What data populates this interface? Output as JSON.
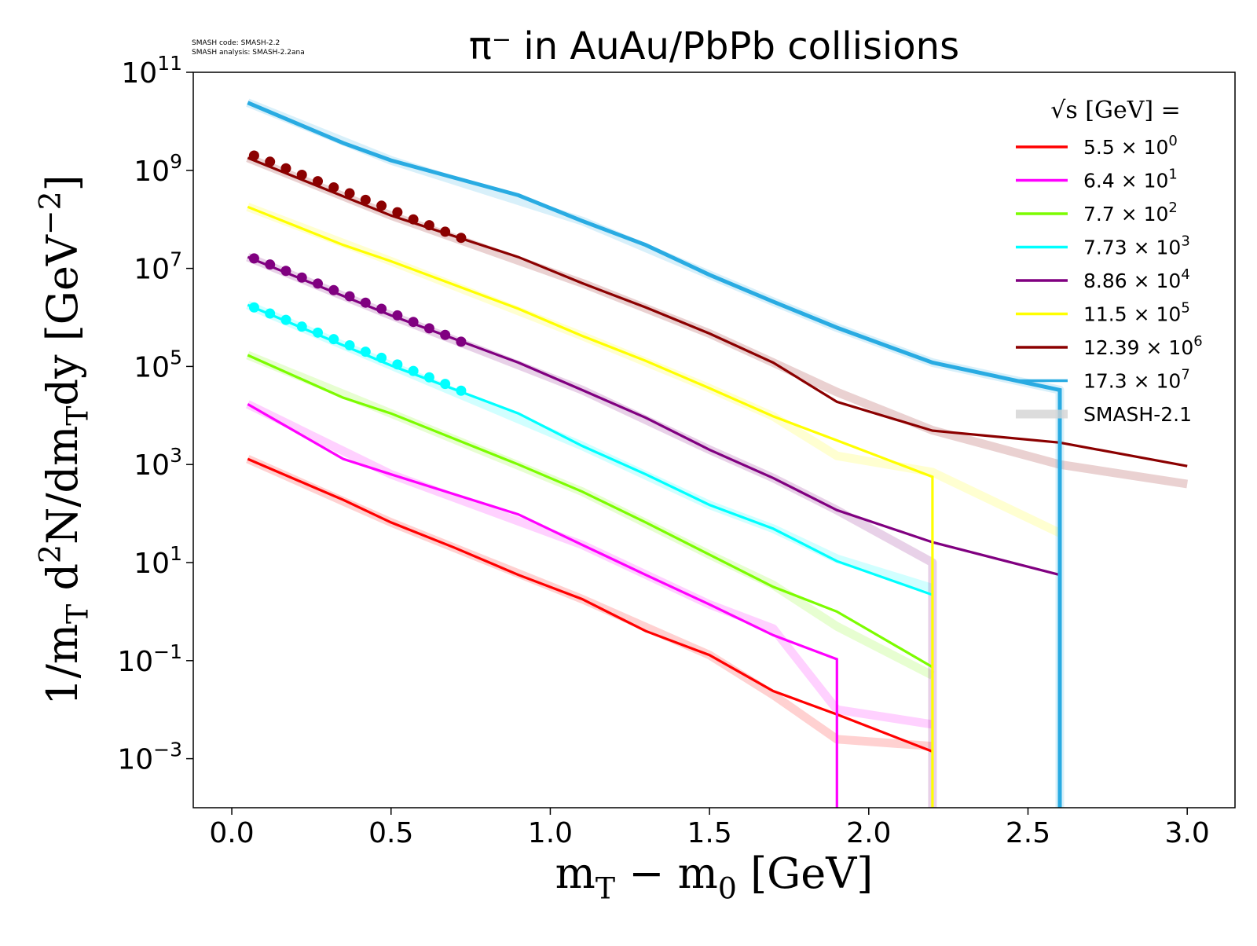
{
  "chart_data": {
    "type": "line",
    "title": "π⁻ in AuAu/PbPb collisions",
    "watermark": [
      "SMASH code:      SMASH-2.2",
      "SMASH analysis: SMASH-2.2ana"
    ],
    "xlabel": [
      {
        "text": "m"
      },
      {
        "sub": "T"
      },
      {
        "text": " − m"
      },
      {
        "sub": "0"
      },
      {
        "text": " [GeV]"
      }
    ],
    "ylabel": [
      {
        "text": "1/m"
      },
      {
        "sub": "T"
      },
      {
        "text": " d"
      },
      {
        "sup": "2"
      },
      {
        "text": "N/dm"
      },
      {
        "sub": "T"
      },
      {
        "text": "dy [GeV"
      },
      {
        "sup": "−2"
      },
      {
        "text": "]"
      }
    ],
    "xlim": [
      -0.121,
      3.15
    ],
    "ylim": [
      0.0001,
      100000000000
    ],
    "ylog": true,
    "xticks": [
      {
        "value": 0,
        "label": "0.0"
      },
      {
        "value": 0.5,
        "label": "0.5"
      },
      {
        "value": 1,
        "label": "1.0"
      },
      {
        "value": 1.5,
        "label": "1.5"
      },
      {
        "value": 2,
        "label": "2.0"
      },
      {
        "value": 2.5,
        "label": "2.5"
      },
      {
        "value": 3,
        "label": "3.0"
      }
    ],
    "yticks": [
      {
        "value": 0.001,
        "label": "10",
        "exponent": "−3"
      },
      {
        "value": 0.1,
        "label": "10",
        "exponent": "−1"
      },
      {
        "value": 10,
        "label": "10",
        "exponent": "1"
      },
      {
        "value": 1000,
        "label": "10",
        "exponent": "3"
      },
      {
        "value": 100000,
        "label": "10",
        "exponent": "5"
      },
      {
        "value": 10000000,
        "label": "10",
        "exponent": "7"
      },
      {
        "value": 1000000000,
        "label": "10",
        "exponent": "9"
      },
      {
        "value": 100000000000,
        "label": "10",
        "exponent": "11"
      }
    ],
    "legend_title": "√s  [GeV] =",
    "legend": "upper right",
    "series": [
      {
        "name": "5.5 × 10",
        "name_sup": "0",
        "color": "#ff0000",
        "x": [
          0.05,
          0.25,
          0.35,
          0.5,
          0.7,
          0.9,
          1.1,
          1.3,
          1.5,
          1.7,
          1.9,
          2.2
        ],
        "values": [
          1300,
          360,
          190,
          66,
          20,
          5.6,
          1.8,
          0.4,
          0.13,
          0.024,
          0.008,
          0.0014
        ]
      },
      {
        "name": "6.4 × 10",
        "name_sup": "1",
        "color": "#ff00ff",
        "x": [
          0.05,
          0.35,
          0.5,
          0.9,
          1.1,
          1.3,
          1.5,
          1.7,
          1.9,
          1.9
        ],
        "values": [
          17000,
          1300,
          630,
          96,
          23,
          5.6,
          1.4,
          0.33,
          0.107,
          1e-06
        ]
      },
      {
        "name": "7.7 × 10",
        "name_sup": "2",
        "color": "#7cfc00",
        "x": [
          0.05,
          0.35,
          0.5,
          0.9,
          1.1,
          1.3,
          1.5,
          1.7,
          1.9,
          2.2
        ],
        "values": [
          170000,
          23000,
          11000,
          1000,
          280,
          66,
          14.5,
          3.2,
          1,
          0.074
        ]
      },
      {
        "name": "7.73 × 10",
        "name_sup": "3",
        "color": "#00ffff",
        "x": [
          0.05,
          0.35,
          0.5,
          0.9,
          1.1,
          1.3,
          1.5,
          1.7,
          1.9,
          2.2
        ],
        "values": [
          1800000,
          270000,
          105000,
          11000,
          2400,
          630,
          150,
          49,
          10.7,
          2.2
        ]
      },
      {
        "name": "8.86 × 10",
        "name_sup": "4",
        "color": "#800080",
        "x": [
          0.05,
          0.5,
          0.9,
          1.1,
          1.3,
          1.5,
          1.7,
          1.9,
          2.2,
          2.6
        ],
        "values": [
          17000000,
          1100000,
          120000,
          33000,
          9000,
          2000,
          530,
          117,
          26,
          5.6
        ]
      },
      {
        "name": "11.5 × 10",
        "name_sup": "5",
        "color": "#ffff00",
        "x": [
          0.05,
          0.35,
          0.5,
          0.9,
          1.1,
          1.3,
          1.5,
          1.7,
          1.9,
          2.2,
          2.2
        ],
        "values": [
          180000000,
          30000000,
          14000000,
          1500000,
          420000,
          130000,
          36000,
          9600,
          3100,
          560,
          1e-06
        ]
      },
      {
        "name": "12.39 × 10",
        "name_sup": "6",
        "color": "#8b0000",
        "x": [
          0.05,
          0.5,
          0.9,
          1.1,
          1.3,
          1.5,
          1.7,
          1.9,
          2.2,
          2.6,
          3.0
        ],
        "values": [
          1800000000,
          120000000,
          17000000,
          5000000,
          1600000,
          470000,
          120000,
          19000,
          4900,
          2800,
          930
        ]
      },
      {
        "name": "17.3 × 10",
        "name_sup": "7",
        "color": "#29abe2",
        "x": [
          0.05,
          0.35,
          0.5,
          0.9,
          1.1,
          1.3,
          1.5,
          1.7,
          1.9,
          2.2,
          2.6,
          2.6
        ],
        "values": [
          24000000000,
          3600000000,
          1600000000,
          310000000,
          93000000,
          30000000,
          7400000,
          2100000,
          620000,
          120000,
          33000,
          1e-06
        ]
      }
    ],
    "reference": {
      "name": "SMASH-2.1",
      "color": "#d3d3d3",
      "series": [
        {
          "color": "#ff0000",
          "x": [
            0.05,
            0.5,
            1.1,
            1.5,
            1.7,
            1.9,
            2.2
          ],
          "values": [
            1300,
            66,
            1.8,
            0.13,
            0.02,
            0.0025,
            0.0018
          ]
        },
        {
          "color": "#ff00ff",
          "x": [
            0.05,
            0.5,
            1.1,
            1.5,
            1.7,
            1.9,
            2.2
          ],
          "values": [
            17000,
            630,
            23,
            1.4,
            0.45,
            0.01,
            0.005
          ]
        },
        {
          "color": "#7cfc00",
          "x": [
            0.05,
            0.5,
            1.1,
            1.5,
            1.7,
            1.9,
            2.2
          ],
          "values": [
            170000,
            11000,
            280,
            14.5,
            3.5,
            0.5,
            0.05
          ]
        },
        {
          "color": "#00ffff",
          "x": [
            0.05,
            0.5,
            1.1,
            1.5,
            1.7,
            1.9,
            2.2
          ],
          "values": [
            1800000,
            105000,
            2400,
            150,
            49,
            12,
            3
          ]
        },
        {
          "color": "#800080",
          "x": [
            0.05,
            0.5,
            1.1,
            1.5,
            1.7,
            1.9,
            2.2,
            2.2
          ],
          "values": [
            17000000,
            1100000,
            33000,
            2000,
            530,
            117,
            10,
            1e-06
          ]
        },
        {
          "color": "#ffff00",
          "x": [
            0.05,
            0.5,
            1.1,
            1.5,
            1.7,
            1.9,
            2.2,
            2.6
          ],
          "values": [
            180000000,
            14000000,
            420000,
            36000,
            9600,
            1500,
            700,
            40
          ]
        },
        {
          "color": "#8b0000",
          "x": [
            0.05,
            0.5,
            1.1,
            1.5,
            1.7,
            1.9,
            2.2,
            2.6,
            3.0
          ],
          "values": [
            1800000000,
            120000000,
            5000000,
            470000,
            120000,
            30000,
            5000,
            1000,
            400
          ]
        },
        {
          "color": "#29abe2",
          "x": [
            0.05,
            0.5,
            1.1,
            1.5,
            1.7,
            1.9,
            2.2,
            2.6,
            2.6
          ],
          "values": [
            24000000000,
            1600000000,
            93000000,
            7400000,
            2100000,
            620000,
            120000,
            33000,
            1e-06
          ]
        }
      ]
    },
    "measurements": [
      {
        "color": "#8b0000",
        "x": [
          0.07,
          0.12,
          0.17,
          0.22,
          0.27,
          0.32,
          0.37,
          0.42,
          0.47,
          0.52,
          0.57,
          0.62,
          0.67,
          0.72
        ],
        "values": [
          2000000000,
          1500000000,
          1100000000,
          810000000,
          600000000,
          450000000,
          340000000,
          250000000,
          190000000,
          140000000,
          100000000,
          76000000,
          56000000,
          42000000
        ]
      },
      {
        "color": "#800080",
        "x": [
          0.07,
          0.12,
          0.17,
          0.22,
          0.27,
          0.32,
          0.37,
          0.42,
          0.47,
          0.52,
          0.57,
          0.62,
          0.67,
          0.72
        ],
        "values": [
          16000000,
          12000000,
          8900000,
          6500000,
          4900000,
          3600000,
          2700000,
          2000000,
          1500000,
          1100000,
          810000,
          600000,
          440000,
          320000
        ]
      },
      {
        "color": "#00ffff",
        "x": [
          0.07,
          0.12,
          0.17,
          0.22,
          0.27,
          0.32,
          0.37,
          0.42,
          0.47,
          0.52,
          0.57,
          0.62,
          0.67,
          0.72
        ],
        "values": [
          1600000,
          1200000,
          890000,
          650000,
          490000,
          360000,
          270000,
          200000,
          150000,
          110000,
          81000,
          60000,
          44000,
          32000
        ]
      }
    ]
  }
}
